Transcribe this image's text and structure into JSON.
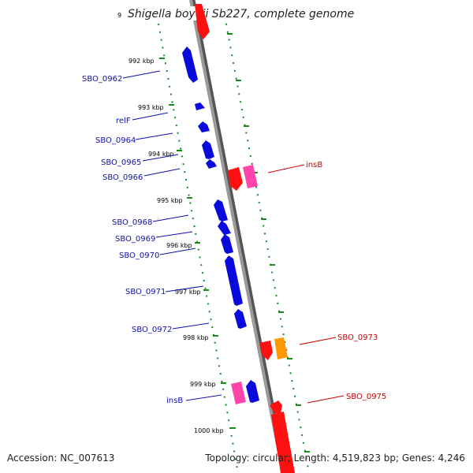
{
  "title": "Shigella boydii Sb227, complete genome",
  "ticks": [
    {
      "label": "9"
    },
    {
      "label": "992 kbp"
    },
    {
      "label": "993 kbp"
    },
    {
      "label": "994 kbp"
    },
    {
      "label": "995 kbp"
    },
    {
      "label": "996 kbp"
    },
    {
      "label": "997 kbp"
    },
    {
      "label": "998 kbp"
    },
    {
      "label": "999 kbp"
    },
    {
      "label": "1000 kbp"
    }
  ],
  "left_labels": [
    "SBO_0962",
    "relF",
    "SBO_0964",
    "SBO_0965",
    "SBO_0966",
    "SBO_0968",
    "SBO_0969",
    "SBO_0970",
    "SBO_0971",
    "SBO_0972",
    "insB"
  ],
  "right_labels": [
    "insB",
    "SBO_0973",
    "SBO_0975"
  ],
  "colors": {
    "backbone": "#8a8a8a",
    "cds": "#0a0adc",
    "cds_red": "#ff1010",
    "cds_pink": "#ff44aa",
    "cds_orange": "#ff9900",
    "ruler": "#1a8a1a",
    "label_blue": "#1010b0",
    "label_red": "#d00000"
  },
  "footer": {
    "accession": "Accession: NC_007613",
    "summary": "Topology: circular; Length: 4,519,823 bp; Genes: 4,246"
  }
}
